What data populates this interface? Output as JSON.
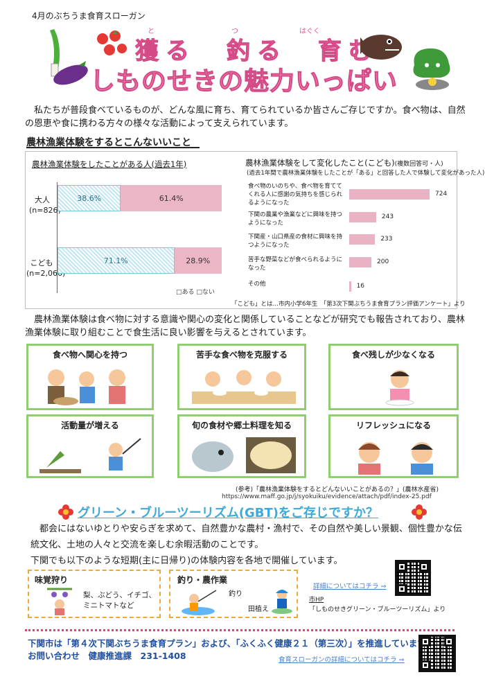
{
  "header": {
    "small": "4月のぶちうま食育スローガン",
    "slogan1": "獲る　釣る　育む",
    "ruby1": "と",
    "ruby2": "つ",
    "ruby3": "はぐく",
    "slogan2": "しものせきの魅力いっぱい"
  },
  "intro": "私たちが普段食べているものが、どんな風に育ち、育てられているか皆さんご存じですか。食べ物は、自然の恩恵や食に携わる方々の様々な活動によって支えられています。",
  "section_heading": "農林漁業体験をするとこんないいこと",
  "chart_data": [
    {
      "type": "bar",
      "title": "農林漁業体験をしたことがある人(過去1年)",
      "categories": [
        "大人\n(n=826)",
        "こども\n(n=2,066)"
      ],
      "series": [
        {
          "name": "ある",
          "values": [
            38.6,
            71.1
          ]
        },
        {
          "name": "ない",
          "values": [
            61.4,
            28.9
          ]
        }
      ],
      "labels": [
        [
          "38.6%",
          "61.4%"
        ],
        [
          "71.1%",
          "28.9%"
        ]
      ],
      "legend": "bottom-right",
      "legend_text": "□ある □ない"
    },
    {
      "type": "bar",
      "title": "農林漁業体験をして変化したこと(こども)",
      "title_suffix": "(複数回答可・人)",
      "subtitle": "(過去1年間で農林漁業体験をしたことが「ある」と回答した人で体験して変化があった人)",
      "categories": [
        "食べ物のいのちや、食べ物を育ててくれる人に感謝の気持ちを感じられるようになった",
        "下関の農業や漁業などに興味を持つようになった",
        "下関産・山口県産の食材に興味を持つようになった",
        "苦手な野菜などが食べられるようになった",
        "その他"
      ],
      "values": [
        724,
        243,
        233,
        200,
        16
      ]
    }
  ],
  "chart_note": "「こども」とは…市内小学6年生　「第3次下関ぶちうま食育プラン評価アンケート」より",
  "para2": "農林漁業体験は食べ物に対する意識や関心の変化と関係していることなどが研究でも報告されており、農林漁業体験に取り組むことで食生活に良い影響を与えるとされています。",
  "benefits": [
    "食べ物へ関心を持つ",
    "苦手な食べ物を克服する",
    "食べ残しが少なくなる",
    "活動量が増える",
    "旬の食材や郷土料理を知る",
    "リフレッシュになる"
  ],
  "reference": "(参考)「農林漁業体験をするとどんないいことがあるの？」(農林水産省)",
  "reference_url": "https://www.maff.go.jp/j/syokuiku/evidence/attach/pdf/index-25.pdf",
  "gbt": {
    "title": "グリーン・ブルーツーリズム(GBT)をご存じですか？",
    "text": "都会にはないゆとりや安らぎを求めて、自然豊かな農村・漁村で、その自然や美しい景観、個性豊かな伝統文化、土地の人々と交流を楽しむ余暇活動のことです。",
    "text2": "下関でも以下のような短期(主に日帰り)の体験内容を各地で開催しています。",
    "box1_title": "味覚狩り",
    "box1_text": "梨、ぶどう、イチゴ、ミニトマトなど",
    "box2_title": "釣り・農作業",
    "box2_fishing": "釣り",
    "box2_planting": "田植え",
    "link_text": "詳細についてはコチラ ⇒",
    "hp_label": "市HP",
    "hp_text": "「しものせきグリーン・ブルーツーリズム」より"
  },
  "footer": {
    "line1": "下関市は「第４次下関ぶちうま食育プラン」および、「ふくふく健康２１（第三次）」を推進しています。",
    "line2": "お問い合わせ　健康推進課　231-1408",
    "link": "食育スローガンの詳細についてはコチラ ⇒"
  },
  "colors": {
    "slogan": "#f26da8",
    "bar_ari": "#bfe6f2",
    "bar_nai": "#ebb6c6",
    "box_border": "#8fcf6f",
    "gbt": "#3fa9d9",
    "footer": "#1f4fa0"
  }
}
